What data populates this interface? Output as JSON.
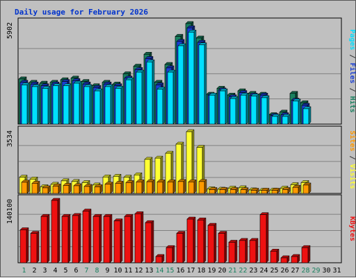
{
  "chart_data": {
    "type": "bar",
    "title": "Daily usage for February 2026",
    "categories": [
      "1",
      "2",
      "3",
      "4",
      "5",
      "6",
      "7",
      "8",
      "9",
      "10",
      "11",
      "12",
      "13",
      "14",
      "15",
      "16",
      "17",
      "18",
      "19",
      "20",
      "21",
      "22",
      "23",
      "24",
      "25",
      "26",
      "27",
      "28",
      "29",
      "30",
      "31"
    ],
    "weekend_days": [
      "1",
      "7",
      "8",
      "14",
      "15",
      "21",
      "22",
      "28",
      "29"
    ],
    "data_days": 28,
    "panels": [
      {
        "id": "hits-files-pages",
        "max_label": "5902",
        "ymax": 5902,
        "axis_label": [
          {
            "text": "Pages",
            "color": "#00e0ff"
          },
          {
            "text": " / ",
            "color": "#333333"
          },
          {
            "text": "Files",
            "color": "#1a3fd4"
          },
          {
            "text": " / ",
            "color": "#333333"
          },
          {
            "text": "Hits",
            "color": "#1a8060"
          }
        ],
        "series": [
          {
            "name": "Hits",
            "color": "#1a8060",
            "values": [
              2650,
              2450,
              2400,
              2450,
              2600,
              2700,
              2500,
              2250,
              2450,
              2350,
              2950,
              3400,
              4100,
              2450,
              3500,
              5150,
              5902,
              5050,
              1750,
              2100,
              1700,
              1950,
              1800,
              1750,
              550,
              700,
              1800,
              1250
            ]
          },
          {
            "name": "Files",
            "color": "#1a3fd4",
            "values": [
              2450,
              2350,
              2250,
              2350,
              2500,
              2550,
              2350,
              2150,
              2350,
              2250,
              2700,
              3200,
              3850,
              2300,
              3300,
              4850,
              5650,
              4800,
              1700,
              2000,
              1600,
              1850,
              1700,
              1700,
              500,
              550,
              1400,
              1100
            ]
          },
          {
            "name": "Pages",
            "color": "#00e0ff",
            "values": [
              2300,
              2200,
              2100,
              2250,
              2250,
              2400,
              2200,
              1950,
              2200,
              2100,
              2600,
              3050,
              3650,
              2050,
              3050,
              4600,
              5400,
              4650,
              1700,
              1950,
              1500,
              1700,
              1650,
              1550,
              450,
              450,
              1350,
              900
            ]
          }
        ]
      },
      {
        "id": "visits-sites",
        "max_label": "3534",
        "ymax": 3534,
        "axis_label": [
          {
            "text": "Sites",
            "color": "#ff9900"
          },
          {
            "text": " / ",
            "color": "#333333"
          },
          {
            "text": "Visits",
            "color": "#ffff33"
          }
        ],
        "series": [
          {
            "name": "Visits",
            "color": "#ffff33",
            "values": [
              930,
              820,
              380,
              520,
              720,
              680,
              620,
              480,
              940,
              980,
              930,
              1060,
              1950,
              2020,
              2300,
              2820,
              3534,
              2640,
              260,
              240,
              300,
              320,
              200,
              180,
              190,
              300,
              500,
              620
            ]
          },
          {
            "name": "Sites",
            "color": "#ff9900",
            "values": [
              640,
              580,
              320,
              420,
              460,
              440,
              400,
              380,
              530,
              580,
              620,
              660,
              670,
              660,
              660,
              680,
              660,
              680,
              220,
              220,
              220,
              210,
              180,
              180,
              180,
              220,
              350,
              480
            ]
          }
        ]
      },
      {
        "id": "kbytes",
        "max_label": "140100",
        "ymax": 140100,
        "axis_label": [
          {
            "text": "KBytes",
            "color": "#ee1111"
          }
        ],
        "series": [
          {
            "name": "KBytes",
            "color": "#ee1111",
            "values": [
              74000,
              66000,
              104000,
              140100,
              104000,
              106000,
              116000,
              104000,
              104000,
              94000,
              104000,
              110000,
              90000,
              14000,
              34000,
              66000,
              98000,
              96000,
              84000,
              66000,
              46000,
              50000,
              50000,
              108000,
              26000,
              11000,
              14000,
              34000
            ]
          }
        ]
      }
    ]
  }
}
